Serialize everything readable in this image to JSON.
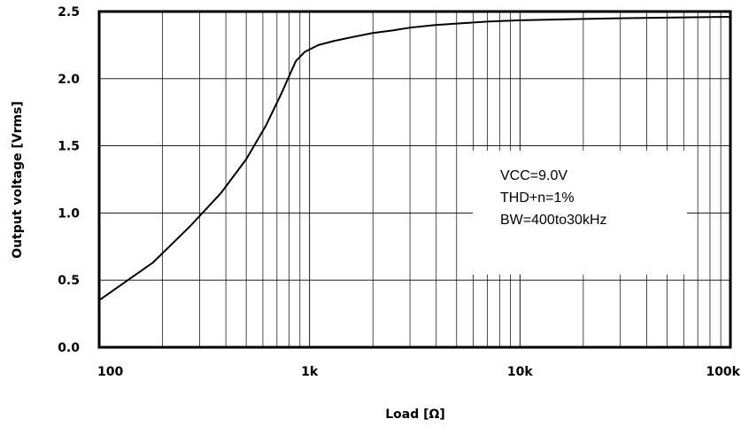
{
  "chart_data": {
    "type": "line",
    "title": "",
    "xlabel": "Load [Ω]",
    "ylabel": "Output voltage [Vrms]",
    "x_scale": "log",
    "xlim": [
      100,
      100000
    ],
    "ylim": [
      0,
      2.5
    ],
    "grid": true,
    "x_ticks": [
      {
        "value": 100,
        "label": "100"
      },
      {
        "value": 1000,
        "label": "1k"
      },
      {
        "value": 10000,
        "label": "10k"
      },
      {
        "value": 100000,
        "label": "100k"
      }
    ],
    "y_ticks": [
      {
        "value": 0.0,
        "label": "0.0"
      },
      {
        "value": 0.5,
        "label": "0.5"
      },
      {
        "value": 1.0,
        "label": "1.0"
      },
      {
        "value": 1.5,
        "label": "1.5"
      },
      {
        "value": 2.0,
        "label": "2.0"
      },
      {
        "value": 2.5,
        "label": "2.5"
      }
    ],
    "series": [
      {
        "color": "#000000",
        "x": [
          100,
          180,
          270,
          380,
          500,
          620,
          730,
          860,
          950,
          1100,
          1300,
          1600,
          2000,
          2500,
          3000,
          4000,
          5000,
          7000,
          10000,
          20000,
          30000,
          50000,
          100000
        ],
        "y": [
          0.35,
          0.63,
          0.9,
          1.15,
          1.4,
          1.65,
          1.88,
          2.13,
          2.2,
          2.25,
          2.28,
          2.31,
          2.34,
          2.36,
          2.38,
          2.4,
          2.41,
          2.425,
          2.435,
          2.445,
          2.45,
          2.455,
          2.46
        ]
      }
    ],
    "annotations": [
      "VCC=9.0V",
      "THD+n=1%",
      "BW=400to30kHz"
    ]
  }
}
